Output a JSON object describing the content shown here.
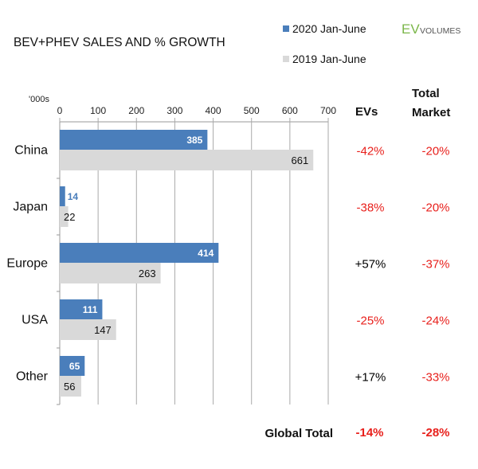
{
  "chart_data": {
    "type": "bar",
    "orientation": "horizontal",
    "title": "BEV+PHEV SALES AND % GROWTH",
    "unit_label": "'000s",
    "categories": [
      "China",
      "Japan",
      "Europe",
      "USA",
      "Other"
    ],
    "series": [
      {
        "name": "2020 Jan-June",
        "color": "#4a7ebb",
        "values": [
          385,
          14,
          414,
          111,
          65
        ]
      },
      {
        "name": "2019 Jan-June",
        "color": "#d9d9d9",
        "values": [
          661,
          22,
          263,
          147,
          56
        ]
      }
    ],
    "xlim": [
      0,
      700
    ],
    "xticks": [
      "0",
      "100",
      "200",
      "300",
      "400",
      "500",
      "600",
      "700"
    ],
    "grid": true,
    "legend_position": "top-right",
    "growth_columns": {
      "ev_header": "EVs",
      "market_header_line1": "Total",
      "market_header_line2": "Market",
      "ev_growth": [
        "-42%",
        "-38%",
        "+57%",
        "-25%",
        "+17%"
      ],
      "market_growth": [
        "-20%",
        "-20%",
        "-37%",
        "-24%",
        "-33%"
      ],
      "negative_color": "#e8201c",
      "positive_color": "#000000"
    },
    "global_total": {
      "label": "Global Total",
      "ev": "-14%",
      "market": "-28%"
    }
  },
  "logo": {
    "text_ev": "EV",
    "text_volumes": "VOLUMES",
    "color": "#7ab648"
  }
}
